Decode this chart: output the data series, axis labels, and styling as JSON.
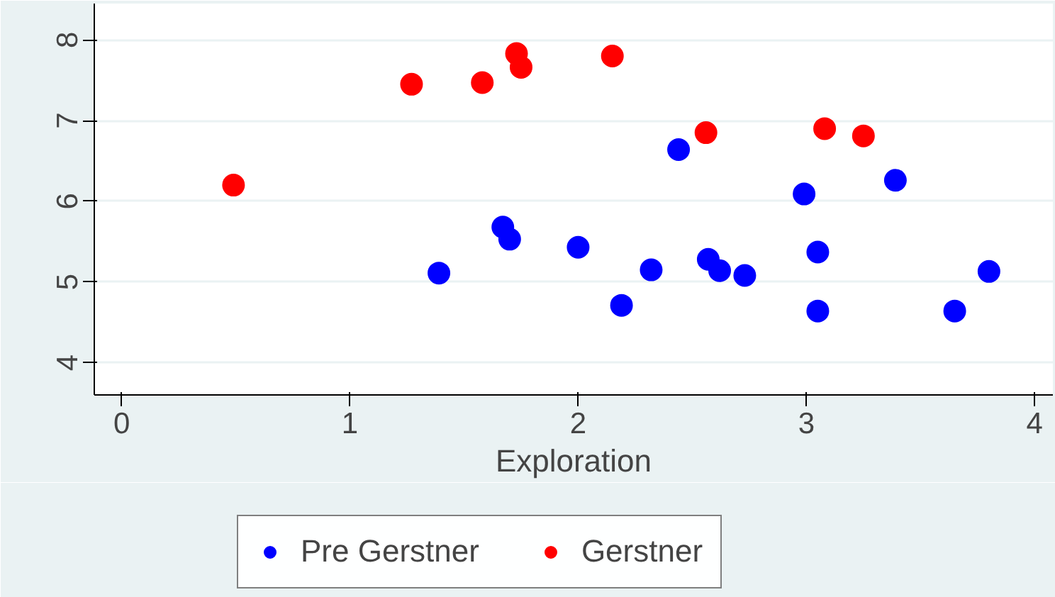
{
  "chart_data": {
    "type": "scatter",
    "xlabel": "Exploration",
    "xlim": [
      -0.12,
      4.08
    ],
    "ylim": [
      3.6,
      8.45
    ],
    "xticks": [
      0,
      1,
      2,
      3,
      4
    ],
    "yticks": [
      4,
      5,
      6,
      7,
      8
    ],
    "grid": "y",
    "legend": "bottom",
    "marker": "circle",
    "series": [
      {
        "name": "Pre Gerstner",
        "color": "#0000ff",
        "x": [
          1.39,
          1.67,
          1.7,
          2.0,
          2.19,
          2.32,
          2.44,
          2.57,
          2.62,
          2.73,
          2.99,
          3.05,
          3.05,
          3.39,
          3.65,
          3.8
        ],
        "values": [
          5.11,
          5.68,
          5.53,
          5.43,
          4.71,
          5.15,
          6.64,
          5.28,
          5.14,
          5.08,
          6.09,
          5.37,
          4.64,
          6.26,
          4.64,
          5.13
        ]
      },
      {
        "name": "Gerstner",
        "color": "#ff0000",
        "x": [
          0.49,
          1.27,
          1.58,
          1.73,
          1.75,
          2.15,
          2.56,
          3.08,
          3.25
        ],
        "values": [
          6.2,
          7.45,
          7.47,
          7.83,
          7.66,
          7.8,
          6.85,
          6.9,
          6.81
        ]
      }
    ]
  }
}
